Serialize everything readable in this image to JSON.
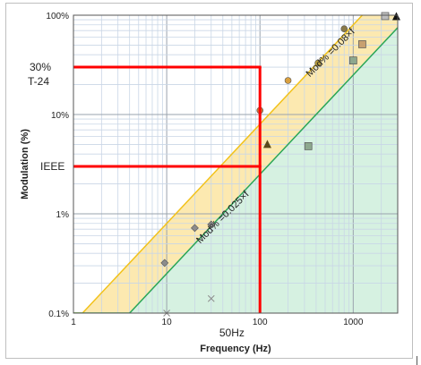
{
  "chart_data": {
    "type": "scatter",
    "xscale": "log",
    "yscale": "log",
    "xlim": [
      1,
      3000
    ],
    "ylim": [
      0.1,
      100
    ],
    "xlabel": "Frequency (Hz)",
    "ylabel": "Modulation (%)",
    "x_ticks": [
      {
        "value": 1,
        "label": "1"
      },
      {
        "value": 10,
        "label": "10"
      },
      {
        "value": 100,
        "label": "100"
      },
      {
        "value": 1000,
        "label": "1000"
      }
    ],
    "y_ticks": [
      {
        "value": 0.1,
        "label": "0.1%"
      },
      {
        "value": 1,
        "label": "1%"
      },
      {
        "value": 10,
        "label": "10%"
      },
      {
        "value": 100,
        "label": "100%"
      }
    ],
    "grid": true,
    "zones": [
      {
        "name": "low-risk",
        "formula": "Mod% = 0.08 × f",
        "slope": 0.08,
        "knee_x": 1.25,
        "color": "#fce9b0",
        "edge_color": "#f2c21b"
      },
      {
        "name": "no-effect",
        "formula": "Mod% = 0.025 × f",
        "slope": 0.025,
        "knee_x": 4,
        "color": "#d6f1e1",
        "edge_color": "#2aa657"
      }
    ],
    "zone_labels": [
      {
        "text": "Mod% =0.08×f",
        "x": 600,
        "y": 40,
        "angle": -45
      },
      {
        "text": "Mod% =0.025×f",
        "x": 42,
        "y": 0.88,
        "angle": -45
      }
    ],
    "series": [
      {
        "marker": "diamond",
        "color": "#8c8c8c",
        "points": [
          [
            9.5,
            0.32
          ],
          [
            20,
            0.72
          ],
          [
            30,
            0.78
          ]
        ]
      },
      {
        "marker": "x",
        "color": "#8c8c8c",
        "points": [
          [
            10,
            0.1
          ],
          [
            30,
            0.14
          ]
        ]
      },
      {
        "marker": "circle",
        "color": "#c97a3a",
        "points": [
          [
            100,
            11
          ]
        ]
      },
      {
        "marker": "circle",
        "color": "#d9a040",
        "points": [
          [
            200,
            22
          ]
        ]
      },
      {
        "marker": "circle",
        "color": "#b59a3a",
        "points": [
          [
            420,
            33
          ]
        ]
      },
      {
        "marker": "circle",
        "color": "#8a7a4a",
        "points": [
          [
            800,
            73
          ]
        ]
      },
      {
        "marker": "triangle",
        "color": "#5a4a1a",
        "points": [
          [
            120,
            5
          ]
        ]
      },
      {
        "marker": "square",
        "color": "#8ea88e",
        "points": [
          [
            330,
            4.8
          ]
        ]
      },
      {
        "marker": "square",
        "color": "#8ea88e",
        "points": [
          [
            1000,
            35
          ]
        ]
      },
      {
        "marker": "square",
        "color": "#c8a070",
        "points": [
          [
            1250,
            51
          ]
        ]
      },
      {
        "marker": "square",
        "color": "#bdbdbd",
        "points": [
          [
            2200,
            98
          ]
        ]
      },
      {
        "marker": "triangle",
        "color": "#111111",
        "points": [
          [
            2900,
            97
          ]
        ]
      }
    ],
    "red_lines": {
      "color": "#ff0000",
      "vertical_x": 100,
      "horizontals": [
        {
          "y": 30,
          "label": "30%",
          "label2": "T-24"
        },
        {
          "y": 3,
          "label": "IEEE"
        }
      ]
    },
    "annotations": [
      {
        "text": "50Hz",
        "x": 50,
        "position": "below-axis"
      }
    ]
  }
}
